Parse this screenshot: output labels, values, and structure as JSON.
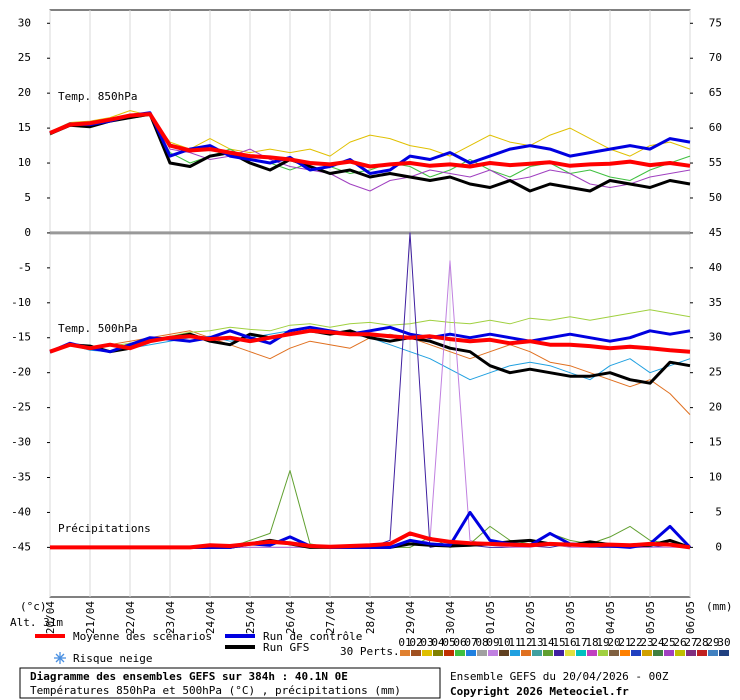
{
  "chart_data": {
    "type": "line",
    "ylabel": "(°c)",
    "y2label": "(mm)",
    "x": [
      0,
      12,
      24,
      36,
      48,
      60,
      72,
      84,
      96,
      108,
      120,
      132,
      144,
      156,
      168,
      180,
      192,
      204,
      216,
      228,
      240,
      252,
      264,
      276,
      288,
      300,
      312,
      324,
      336,
      348,
      360,
      372,
      384
    ],
    "xlim": [
      0,
      384
    ],
    "xticks": [
      {
        "value": 0,
        "label": "20/04"
      },
      {
        "value": 24,
        "label": "21/04"
      },
      {
        "value": 48,
        "label": "22/04"
      },
      {
        "value": 72,
        "label": "23/04"
      },
      {
        "value": 96,
        "label": "24/04"
      },
      {
        "value": 120,
        "label": "25/04"
      },
      {
        "value": 144,
        "label": "26/04"
      },
      {
        "value": 168,
        "label": "27/04"
      },
      {
        "value": 192,
        "label": "28/04"
      },
      {
        "value": 216,
        "label": "29/04"
      },
      {
        "value": 240,
        "label": "30/04"
      },
      {
        "value": 264,
        "label": "01/05"
      },
      {
        "value": 288,
        "label": "02/05"
      },
      {
        "value": 312,
        "label": "03/05"
      },
      {
        "value": 336,
        "label": "04/05"
      },
      {
        "value": 360,
        "label": "05/05"
      },
      {
        "value": 384,
        "label": "06/05"
      }
    ],
    "ylim": [
      -52.1,
      31.9
    ],
    "yticks": [
      -45,
      -40,
      -35,
      -30,
      -25,
      -20,
      -15,
      -10,
      -5,
      0,
      5,
      10,
      15,
      20,
      25,
      30
    ],
    "y2lim": [
      -7.1,
      76.9
    ],
    "y2ticks": [
      0,
      5,
      10,
      15,
      20,
      25,
      30,
      35,
      40,
      45,
      50,
      55,
      60,
      65,
      70,
      75
    ],
    "grid": true,
    "panels": [
      {
        "label": "Temp. 850hPa",
        "axis": "y",
        "series": [
          {
            "color": "#e0c000",
            "width": 1,
            "values": [
              14.5,
              15.8,
              16,
              16.5,
              17.5,
              16.8,
              13,
              12,
              13.5,
              12,
              11.5,
              12,
              11.5,
              12,
              11,
              13,
              14,
              13.5,
              12.5,
              12,
              11,
              12.5,
              14,
              13,
              12.5,
              14,
              15,
              13.5,
              12,
              11,
              12.5,
              13,
              12
            ]
          },
          {
            "color": "#40c040",
            "width": 1,
            "values": [
              14,
              15.4,
              15.6,
              16,
              16.4,
              16.8,
              11.5,
              10,
              11,
              12,
              10.5,
              10,
              9,
              10,
              9.5,
              8.5,
              9,
              10,
              9.5,
              8,
              9,
              10.5,
              9,
              8,
              9.5,
              10,
              8.5,
              9,
              8,
              7.5,
              9,
              10,
              11
            ]
          },
          {
            "color": "#a040c0",
            "width": 1,
            "values": [
              14.4,
              15.7,
              15.9,
              16.3,
              16.9,
              17.1,
              12,
              11.5,
              10.5,
              11,
              12,
              10.5,
              9.5,
              9,
              8.5,
              7,
              6,
              7.5,
              8,
              9,
              8.5,
              8,
              9,
              7.5,
              8,
              9,
              8.5,
              7,
              6.5,
              7,
              8,
              8.5,
              9
            ]
          },
          {
            "color": "#000000",
            "width": 3,
            "values": [
              14.2,
              15.4,
              15.2,
              16.0,
              16.5,
              17.0,
              10.0,
              9.5,
              11.0,
              11.5,
              10.0,
              9.0,
              10.5,
              9.5,
              8.5,
              9.0,
              8.0,
              8.5,
              8.0,
              7.5,
              8.0,
              7.0,
              6.5,
              7.5,
              6.0,
              7.0,
              6.5,
              6.0,
              7.5,
              7.0,
              6.5,
              7.5,
              7.0
            ]
          },
          {
            "color": "#0000e0",
            "width": 3,
            "values": [
              14.3,
              15.6,
              15.5,
              16.0,
              16.8,
              17.2,
              11.0,
              12.0,
              12.5,
              11.0,
              10.5,
              10.0,
              10.8,
              9.0,
              9.5,
              10.5,
              8.5,
              9.0,
              11.0,
              10.5,
              11.5,
              10.0,
              11.0,
              12.0,
              12.5,
              12.0,
              11.0,
              11.5,
              12.0,
              12.5,
              12.0,
              13.5,
              13.0
            ]
          },
          {
            "color": "#ff0000",
            "width": 4,
            "values": [
              14.3,
              15.5,
              15.7,
              16.2,
              16.8,
              17.0,
              12.5,
              11.8,
              12.0,
              11.5,
              11.0,
              10.8,
              10.5,
              10.0,
              9.8,
              10.2,
              9.5,
              9.8,
              10.0,
              9.6,
              9.8,
              9.5,
              10.0,
              9.7,
              9.9,
              10.1,
              9.6,
              9.8,
              9.9,
              10.2,
              9.7,
              10.0,
              9.6
            ]
          }
        ]
      },
      {
        "label": "Temp. 500hPa",
        "axis": "y",
        "series": [
          {
            "color": "#e07020",
            "width": 1,
            "values": [
              -17,
              -16.2,
              -16.5,
              -16,
              -15.5,
              -15,
              -14.5,
              -14,
              -15,
              -16,
              -17,
              -18,
              -16.5,
              -15.5,
              -16,
              -16.5,
              -15,
              -14.5,
              -15,
              -16,
              -17,
              -18,
              -17,
              -16,
              -17,
              -18.5,
              -19,
              -20,
              -21,
              -22,
              -21,
              -23,
              -26
            ]
          },
          {
            "color": "#20a0e0",
            "width": 1,
            "values": [
              -17.2,
              -16,
              -16.8,
              -17,
              -16.5,
              -16,
              -15.5,
              -15,
              -14.8,
              -15.5,
              -15,
              -14.5,
              -14,
              -13.5,
              -14,
              -14.5,
              -15,
              -16,
              -17,
              -18,
              -19.5,
              -21,
              -20,
              -19,
              -18.5,
              -19,
              -20,
              -21,
              -19,
              -18,
              -20,
              -19,
              -18
            ]
          },
          {
            "color": "#a0d040",
            "width": 1,
            "values": [
              -17,
              -15.9,
              -16.3,
              -16.2,
              -15.8,
              -15.2,
              -14.8,
              -14.2,
              -14,
              -13.5,
              -13.8,
              -14,
              -13.2,
              -13,
              -13.5,
              -13,
              -12.8,
              -13.2,
              -13,
              -12.5,
              -12.8,
              -13,
              -12.5,
              -13,
              -12.2,
              -12.5,
              -12,
              -12.5,
              -12,
              -11.5,
              -11,
              -11.5,
              -12
            ]
          },
          {
            "color": "#000000",
            "width": 3,
            "values": [
              -17,
              -16,
              -16.2,
              -17,
              -16.5,
              -15.5,
              -15,
              -14.5,
              -15.5,
              -16,
              -14.5,
              -15,
              -14.5,
              -14,
              -14.5,
              -14,
              -15,
              -15.5,
              -15,
              -15.5,
              -16.5,
              -17,
              -19,
              -20,
              -19.5,
              -20,
              -20.5,
              -20.5,
              -20,
              -21,
              -21.5,
              -18.5,
              -19
            ]
          },
          {
            "color": "#0000e0",
            "width": 3,
            "values": [
              -17,
              -15.8,
              -16.5,
              -17,
              -16,
              -15,
              -15.2,
              -15.5,
              -15,
              -14,
              -15,
              -15.8,
              -14,
              -13.5,
              -14,
              -14.5,
              -14,
              -13.5,
              -14.5,
              -15,
              -14.5,
              -15,
              -14.5,
              -15,
              -15.5,
              -15,
              -14.5,
              -15,
              -15.5,
              -15,
              -14,
              -14.5,
              -14
            ]
          },
          {
            "color": "#ff0000",
            "width": 4,
            "values": [
              -17,
              -16,
              -16.5,
              -16,
              -16.5,
              -15.5,
              -15,
              -14.8,
              -15.2,
              -15,
              -15.5,
              -15,
              -14.5,
              -14,
              -14.2,
              -14.5,
              -14.5,
              -14.8,
              -15,
              -14.8,
              -15.2,
              -15.5,
              -15.3,
              -15.8,
              -15.5,
              -16,
              -16,
              -16.2,
              -16.5,
              -16.3,
              -16.5,
              -16.8,
              -17
            ]
          }
        ]
      },
      {
        "label": "Précipitations",
        "axis": "y2",
        "series": [
          {
            "color": "#4020a0",
            "width": 1,
            "values": [
              0,
              0,
              0,
              0,
              0,
              0,
              0,
              0,
              0,
              0,
              0,
              0,
              0,
              0,
              0,
              0,
              0,
              1,
              45,
              0,
              0.5,
              0.3,
              0,
              0,
              0.2,
              0,
              0.5,
              0,
              0,
              0,
              0,
              0.3,
              0
            ]
          },
          {
            "color": "#c080e0",
            "width": 1,
            "values": [
              0,
              0,
              0,
              0,
              0,
              0,
              0,
              0,
              0,
              0,
              0,
              0,
              0,
              0,
              0,
              0,
              0,
              0,
              0.5,
              1,
              41,
              1,
              0.3,
              0,
              0,
              0.5,
              0,
              0,
              0.2,
              0,
              0,
              0,
              0
            ]
          },
          {
            "color": "#60a030",
            "width": 1,
            "values": [
              0,
              0,
              0,
              0,
              0,
              0,
              0,
              0,
              0.5,
              0,
              1,
              2,
              11,
              0.5,
              0,
              0,
              0,
              0,
              0,
              1.5,
              0,
              0.5,
              3,
              1,
              0.5,
              2,
              1,
              0.5,
              1.5,
              3,
              1,
              0.5,
              0
            ]
          },
          {
            "color": "#000000",
            "width": 3,
            "values": [
              0,
              0,
              0,
              0,
              0,
              0,
              0,
              0,
              0,
              0,
              0.5,
              1,
              0.5,
              0,
              0,
              0,
              0,
              0,
              0.5,
              0.3,
              0.2,
              0.3,
              0.5,
              0.8,
              1,
              0.5,
              0.3,
              0.8,
              0.4,
              0.2,
              0.3,
              1,
              0
            ]
          },
          {
            "color": "#0000e0",
            "width": 3,
            "values": [
              0,
              0,
              0,
              0,
              0,
              0,
              0,
              0,
              0,
              0,
              0.5,
              0.3,
              1.5,
              0.2,
              0,
              0,
              0,
              0,
              1,
              0.5,
              0.3,
              5,
              1,
              0.5,
              0.3,
              2,
              0.5,
              0.3,
              0.2,
              0,
              0.5,
              3,
              0
            ]
          },
          {
            "color": "#ff0000",
            "width": 4,
            "values": [
              0,
              0,
              0,
              0,
              0,
              0,
              0,
              0,
              0.3,
              0.2,
              0.5,
              0.8,
              0.6,
              0.2,
              0.1,
              0.2,
              0.3,
              0.5,
              2,
              1.2,
              0.8,
              0.6,
              0.5,
              0.4,
              0.3,
              0.5,
              0.4,
              0.3,
              0.4,
              0.3,
              0.5,
              0.4,
              0
            ]
          }
        ]
      }
    ],
    "legend": [
      {
        "name": "Moyenne des scénarios",
        "color": "#ff0000"
      },
      {
        "name": "Run de contrôle",
        "color": "#0000e0"
      },
      {
        "name": "Run GFS",
        "color": "#000000"
      }
    ],
    "snow": "Risque neige",
    "altitude": "Alt. 31m",
    "perturbations": {
      "label": "30 Perts.",
      "names": [
        "01",
        "02",
        "03",
        "04",
        "05",
        "06",
        "07",
        "08",
        "09",
        "10",
        "11",
        "12",
        "13",
        "14",
        "15",
        "16",
        "17",
        "18",
        "19",
        "20",
        "21",
        "22",
        "23",
        "24",
        "25",
        "26",
        "27",
        "28",
        "29",
        "30"
      ],
      "colors": [
        "#e08030",
        "#a05020",
        "#e0c000",
        "#808000",
        "#c03000",
        "#40c040",
        "#2080e0",
        "#a0a0a0",
        "#c080e0",
        "#604020",
        "#20a0e0",
        "#e07020",
        "#40a0a0",
        "#60a030",
        "#4020a0",
        "#e0e040",
        "#00c0c0",
        "#c040c0",
        "#a0d040",
        "#806040",
        "#ff8000",
        "#2040c0",
        "#d0a000",
        "#408040",
        "#a040c0",
        "#c0c000",
        "#803080",
        "#c02020",
        "#4080c0",
        "#204080"
      ]
    },
    "title": "Diagramme des ensembles GEFS sur 384h : 40.1N 0E",
    "subtitle": "Températures 850hPa et 500hPa (°C) , précipitations (mm)",
    "run": "Ensemble GEFS du 20/04/2026 - 00Z",
    "copyright": "Copyright 2026 Meteociel.fr"
  }
}
